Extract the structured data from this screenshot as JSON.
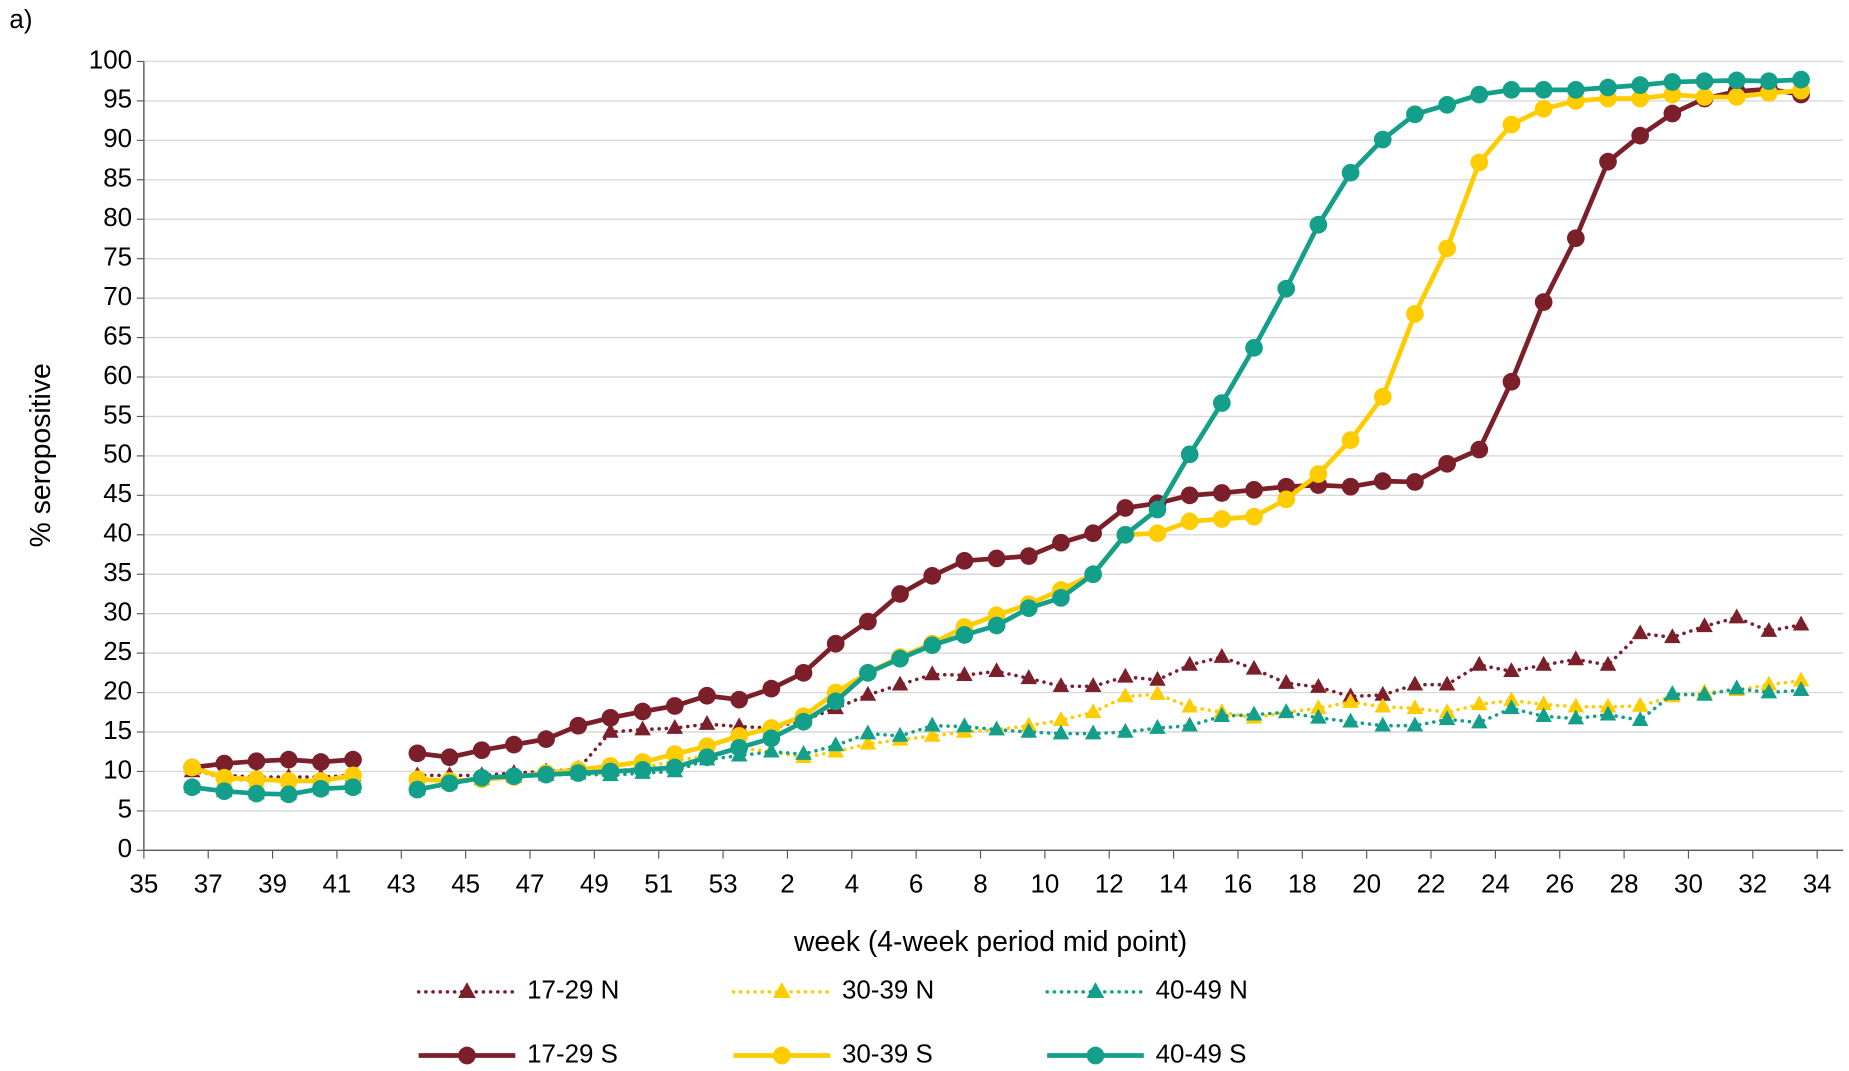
{
  "chart_data": {
    "type": "line",
    "panel_label": "a)",
    "x_label": "week (4-week period mid point)",
    "y_label": "% seropositive",
    "categories": [
      "35",
      null,
      "37",
      null,
      "39",
      null,
      "41",
      null,
      "43",
      null,
      "45",
      null,
      "47",
      null,
      "49",
      null,
      "51",
      null,
      "53",
      null,
      "2",
      null,
      "4",
      null,
      "6",
      null,
      "8",
      null,
      "10",
      null,
      "12",
      null,
      "14",
      null,
      "16",
      null,
      "18",
      null,
      "20",
      null,
      "22",
      null,
      "24",
      null,
      "26",
      null,
      "28",
      null,
      "30",
      null,
      "32",
      null,
      "34"
    ],
    "ylim": [
      0,
      100
    ],
    "yticks": [
      0,
      5,
      10,
      15,
      20,
      25,
      30,
      35,
      40,
      45,
      50,
      55,
      60,
      65,
      70,
      75,
      80,
      85,
      90,
      95,
      100
    ],
    "grid": true,
    "legend": "bottom",
    "series": [
      {
        "name": "17-29 N",
        "color": "#7b1f2b",
        "dash": "dotted",
        "marker": "triangle",
        "values": [
          null,
          10,
          9.5,
          9.3,
          9.3,
          9.3,
          9.5,
          null,
          9.5,
          9.5,
          9.5,
          9.8,
          10,
          10.3,
          15,
          15.3,
          15.5,
          16,
          15.7,
          15.5,
          16.5,
          18,
          19.7,
          21,
          22.3,
          22.2,
          22.7,
          21.8,
          20.8,
          20.8,
          22,
          21.6,
          23.5,
          24.5,
          23,
          21.2,
          20.7,
          19.5,
          19.7,
          21,
          21,
          23.5,
          22.7,
          23.5,
          24.2,
          23.5,
          27.5,
          27,
          28.4,
          29.5,
          27.8,
          28.6,
          null
        ]
      },
      {
        "name": "30-39 N",
        "color": "#ffcc00",
        "dash": "dotted",
        "marker": "triangle",
        "values": [
          null,
          10.3,
          9,
          8.8,
          8.8,
          8.8,
          9.3,
          null,
          9,
          8.7,
          9,
          9.3,
          9.7,
          10,
          10,
          10.5,
          11.3,
          12,
          13,
          12.5,
          11.8,
          12.5,
          13.5,
          14,
          14.5,
          15,
          15.3,
          15.8,
          16.5,
          17.5,
          19.5,
          19.8,
          18.2,
          17.5,
          16.8,
          17.5,
          18,
          18.8,
          18.2,
          18,
          17.5,
          18.5,
          19,
          18.5,
          18.2,
          18.2,
          18.3,
          19.5,
          20,
          20.3,
          21,
          21.5,
          null
        ]
      },
      {
        "name": "40-49 N",
        "color": "#139f8a",
        "dash": "dotted",
        "marker": "triangle",
        "values": [
          null,
          8,
          7.5,
          7.2,
          7.1,
          7.8,
          8,
          null,
          7.7,
          8.5,
          9,
          9.3,
          9.5,
          9.7,
          9.5,
          9.8,
          10,
          11.5,
          12,
          12.5,
          12.2,
          13.3,
          14.8,
          14.5,
          15.8,
          15.7,
          15.3,
          15,
          14.8,
          14.8,
          15,
          15.5,
          15.8,
          17,
          17.2,
          17.5,
          16.8,
          16.3,
          15.8,
          15.8,
          16.6,
          16.2,
          18,
          17,
          16.7,
          17.2,
          16.5,
          19.8,
          19.7,
          20.5,
          20,
          20.3,
          null
        ]
      },
      {
        "name": "17-29 S",
        "color": "#7b1f2b",
        "dash": "solid",
        "marker": "circle",
        "values": [
          null,
          10.5,
          11,
          11.3,
          11.5,
          11.2,
          11.5,
          null,
          12.3,
          11.8,
          12.7,
          13.4,
          14.1,
          15.8,
          16.8,
          17.6,
          18.3,
          19.6,
          19.1,
          20.5,
          22.5,
          26.2,
          29,
          32.5,
          34.8,
          36.7,
          37,
          37.3,
          39,
          40.2,
          43.4,
          44,
          45,
          45.3,
          45.7,
          46.1,
          46.3,
          46.1,
          46.8,
          46.7,
          49,
          50.8,
          59.4,
          69.5,
          77.6,
          87.3,
          90.6,
          93.4,
          95.3,
          96.2,
          96.5,
          95.8,
          null
        ]
      },
      {
        "name": "30-39 S",
        "color": "#ffcc00",
        "dash": "solid",
        "marker": "circle",
        "values": [
          null,
          10.5,
          9.2,
          9,
          8.8,
          8.8,
          9.5,
          null,
          9,
          8.8,
          9,
          9.3,
          9.8,
          10.2,
          10.7,
          11.2,
          12.2,
          13.2,
          14.5,
          15.5,
          17,
          20,
          22.5,
          24.5,
          26.2,
          28.3,
          29.8,
          31.2,
          33,
          35,
          40,
          40.2,
          41.7,
          42,
          42.3,
          44.5,
          47.7,
          52,
          57.5,
          68,
          76.3,
          87.2,
          92,
          94,
          95,
          95.3,
          95.3,
          95.8,
          95.5,
          95.5,
          96,
          96.3,
          null
        ]
      },
      {
        "name": "40-49 S",
        "color": "#139f8a",
        "dash": "solid",
        "marker": "circle",
        "values": [
          null,
          8,
          7.5,
          7.2,
          7.1,
          7.8,
          8,
          null,
          7.7,
          8.5,
          9.2,
          9.4,
          9.6,
          9.8,
          10,
          10.2,
          10.5,
          11.8,
          13,
          14.2,
          16.3,
          18.9,
          22.5,
          24.3,
          26,
          27.3,
          28.5,
          30.7,
          32,
          35,
          40,
          43.2,
          50.2,
          56.7,
          63.7,
          71.2,
          79.3,
          85.9,
          90.1,
          93.3,
          94.5,
          95.8,
          96.4,
          96.4,
          96.4,
          96.7,
          97,
          97.4,
          97.5,
          97.6,
          97.5,
          97.7,
          null
        ]
      }
    ]
  }
}
